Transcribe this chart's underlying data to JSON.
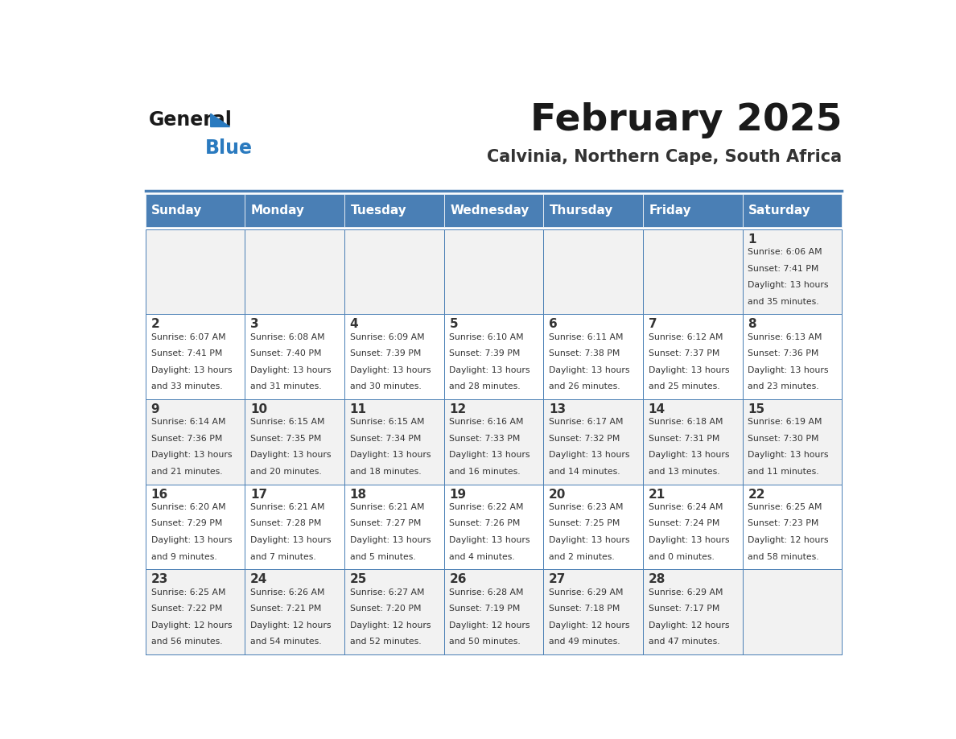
{
  "title": "February 2025",
  "subtitle": "Calvinia, Northern Cape, South Africa",
  "days_of_week": [
    "Sunday",
    "Monday",
    "Tuesday",
    "Wednesday",
    "Thursday",
    "Friday",
    "Saturday"
  ],
  "header_bg": "#4a7fb5",
  "header_text": "#ffffff",
  "odd_row_bg": "#f2f2f2",
  "even_row_bg": "#ffffff",
  "cell_border": "#4a7fb5",
  "day_num_color": "#333333",
  "info_text_color": "#333333",
  "title_color": "#1a1a1a",
  "subtitle_color": "#333333",
  "logo_general_color": "#1a1a1a",
  "logo_blue_color": "#2a7abf",
  "top_line_color": "#4a7fb5",
  "calendar_data": [
    [
      null,
      null,
      null,
      null,
      null,
      null,
      {
        "day": 1,
        "sunrise": "6:06 AM",
        "sunset": "7:41 PM",
        "daylight_h": "13 hours",
        "daylight_m": "35 minutes."
      }
    ],
    [
      {
        "day": 2,
        "sunrise": "6:07 AM",
        "sunset": "7:41 PM",
        "daylight_h": "13 hours",
        "daylight_m": "33 minutes."
      },
      {
        "day": 3,
        "sunrise": "6:08 AM",
        "sunset": "7:40 PM",
        "daylight_h": "13 hours",
        "daylight_m": "31 minutes."
      },
      {
        "day": 4,
        "sunrise": "6:09 AM",
        "sunset": "7:39 PM",
        "daylight_h": "13 hours",
        "daylight_m": "30 minutes."
      },
      {
        "day": 5,
        "sunrise": "6:10 AM",
        "sunset": "7:39 PM",
        "daylight_h": "13 hours",
        "daylight_m": "28 minutes."
      },
      {
        "day": 6,
        "sunrise": "6:11 AM",
        "sunset": "7:38 PM",
        "daylight_h": "13 hours",
        "daylight_m": "26 minutes."
      },
      {
        "day": 7,
        "sunrise": "6:12 AM",
        "sunset": "7:37 PM",
        "daylight_h": "13 hours",
        "daylight_m": "25 minutes."
      },
      {
        "day": 8,
        "sunrise": "6:13 AM",
        "sunset": "7:36 PM",
        "daylight_h": "13 hours",
        "daylight_m": "23 minutes."
      }
    ],
    [
      {
        "day": 9,
        "sunrise": "6:14 AM",
        "sunset": "7:36 PM",
        "daylight_h": "13 hours",
        "daylight_m": "21 minutes."
      },
      {
        "day": 10,
        "sunrise": "6:15 AM",
        "sunset": "7:35 PM",
        "daylight_h": "13 hours",
        "daylight_m": "20 minutes."
      },
      {
        "day": 11,
        "sunrise": "6:15 AM",
        "sunset": "7:34 PM",
        "daylight_h": "13 hours",
        "daylight_m": "18 minutes."
      },
      {
        "day": 12,
        "sunrise": "6:16 AM",
        "sunset": "7:33 PM",
        "daylight_h": "13 hours",
        "daylight_m": "16 minutes."
      },
      {
        "day": 13,
        "sunrise": "6:17 AM",
        "sunset": "7:32 PM",
        "daylight_h": "13 hours",
        "daylight_m": "14 minutes."
      },
      {
        "day": 14,
        "sunrise": "6:18 AM",
        "sunset": "7:31 PM",
        "daylight_h": "13 hours",
        "daylight_m": "13 minutes."
      },
      {
        "day": 15,
        "sunrise": "6:19 AM",
        "sunset": "7:30 PM",
        "daylight_h": "13 hours",
        "daylight_m": "11 minutes."
      }
    ],
    [
      {
        "day": 16,
        "sunrise": "6:20 AM",
        "sunset": "7:29 PM",
        "daylight_h": "13 hours",
        "daylight_m": "9 minutes."
      },
      {
        "day": 17,
        "sunrise": "6:21 AM",
        "sunset": "7:28 PM",
        "daylight_h": "13 hours",
        "daylight_m": "7 minutes."
      },
      {
        "day": 18,
        "sunrise": "6:21 AM",
        "sunset": "7:27 PM",
        "daylight_h": "13 hours",
        "daylight_m": "5 minutes."
      },
      {
        "day": 19,
        "sunrise": "6:22 AM",
        "sunset": "7:26 PM",
        "daylight_h": "13 hours",
        "daylight_m": "4 minutes."
      },
      {
        "day": 20,
        "sunrise": "6:23 AM",
        "sunset": "7:25 PM",
        "daylight_h": "13 hours",
        "daylight_m": "2 minutes."
      },
      {
        "day": 21,
        "sunrise": "6:24 AM",
        "sunset": "7:24 PM",
        "daylight_h": "13 hours",
        "daylight_m": "0 minutes."
      },
      {
        "day": 22,
        "sunrise": "6:25 AM",
        "sunset": "7:23 PM",
        "daylight_h": "12 hours",
        "daylight_m": "58 minutes."
      }
    ],
    [
      {
        "day": 23,
        "sunrise": "6:25 AM",
        "sunset": "7:22 PM",
        "daylight_h": "12 hours",
        "daylight_m": "56 minutes."
      },
      {
        "day": 24,
        "sunrise": "6:26 AM",
        "sunset": "7:21 PM",
        "daylight_h": "12 hours",
        "daylight_m": "54 minutes."
      },
      {
        "day": 25,
        "sunrise": "6:27 AM",
        "sunset": "7:20 PM",
        "daylight_h": "12 hours",
        "daylight_m": "52 minutes."
      },
      {
        "day": 26,
        "sunrise": "6:28 AM",
        "sunset": "7:19 PM",
        "daylight_h": "12 hours",
        "daylight_m": "50 minutes."
      },
      {
        "day": 27,
        "sunrise": "6:29 AM",
        "sunset": "7:18 PM",
        "daylight_h": "12 hours",
        "daylight_m": "49 minutes."
      },
      {
        "day": 28,
        "sunrise": "6:29 AM",
        "sunset": "7:17 PM",
        "daylight_h": "12 hours",
        "daylight_m": "47 minutes."
      },
      null
    ]
  ]
}
